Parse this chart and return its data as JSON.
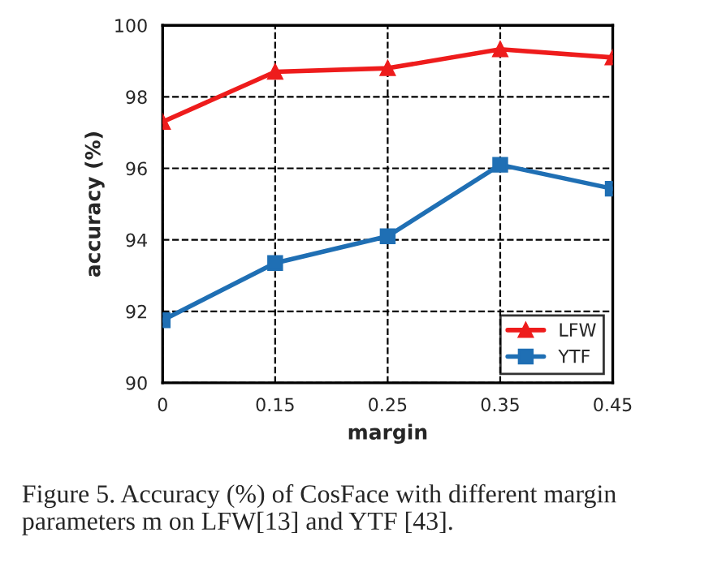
{
  "chart_data": {
    "type": "line",
    "xlabel": "margin",
    "ylabel": "accuracy (%)",
    "categories": [
      "0",
      "0.15",
      "0.25",
      "0.35",
      "0.45"
    ],
    "series": [
      {
        "name": "LFW",
        "color": "#ee1c1c",
        "marker": "triangle",
        "values": [
          97.3,
          98.7,
          98.8,
          99.33,
          99.1
        ]
      },
      {
        "name": "YTF",
        "color": "#1f6fb4",
        "marker": "square",
        "values": [
          91.75,
          93.35,
          94.1,
          96.1,
          95.43
        ]
      }
    ],
    "ylim": [
      90,
      100
    ],
    "yticks": [
      90,
      92,
      94,
      96,
      98,
      100
    ],
    "grid": true,
    "legend": "bottom right",
    "line_style": "solid",
    "annotations": [
      "Figure 5. Accuracy (%) of CosFace with different margin parameters m on LFW[13] and YTF [43]."
    ]
  }
}
